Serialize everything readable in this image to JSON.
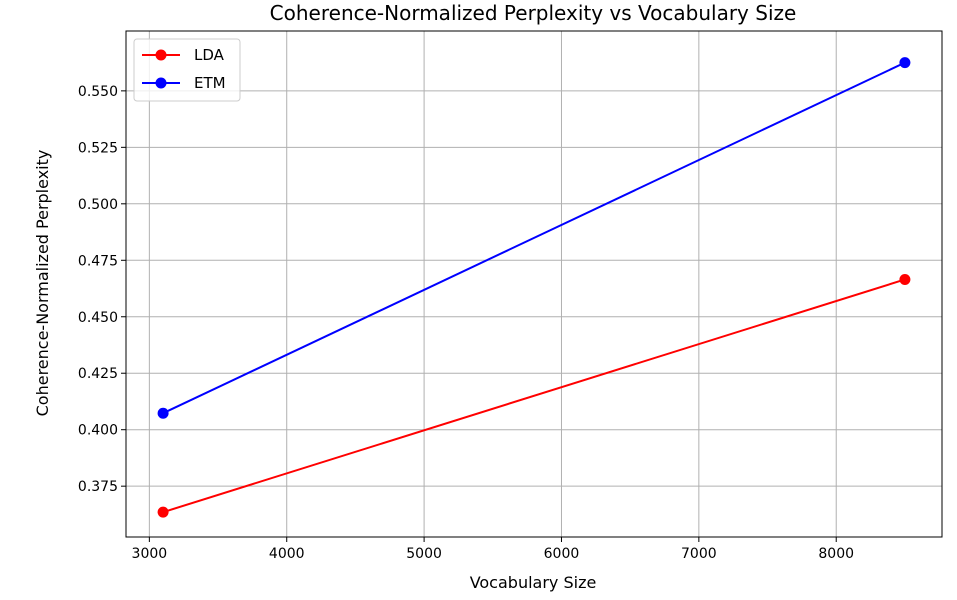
{
  "chart_data": {
    "type": "line",
    "title": "Coherence-Normalized Perplexity vs Vocabulary Size",
    "xlabel": "Vocabulary Size",
    "ylabel": "Coherence-Normalized Perplexity",
    "xlim": [
      2830,
      8770
    ],
    "ylim": [
      0.3525,
      0.5765
    ],
    "xticks": [
      3000,
      4000,
      5000,
      6000,
      7000,
      8000
    ],
    "xtick_labels": [
      "3000",
      "4000",
      "5000",
      "6000",
      "7000",
      "8000"
    ],
    "yticks": [
      0.375,
      0.4,
      0.425,
      0.45,
      0.475,
      0.5,
      0.525,
      0.55
    ],
    "ytick_labels": [
      "0.375",
      "0.400",
      "0.425",
      "0.450",
      "0.475",
      "0.500",
      "0.525",
      "0.550"
    ],
    "grid": true,
    "legend_position": "top-left",
    "series": [
      {
        "name": "LDA",
        "color": "#ff0000",
        "marker": "circle",
        "x": [
          3100,
          8500
        ],
        "y": [
          0.3635,
          0.4665
        ]
      },
      {
        "name": "ETM",
        "color": "#0000ff",
        "marker": "circle",
        "x": [
          3100,
          8500
        ],
        "y": [
          0.4073,
          0.5625
        ]
      }
    ]
  }
}
